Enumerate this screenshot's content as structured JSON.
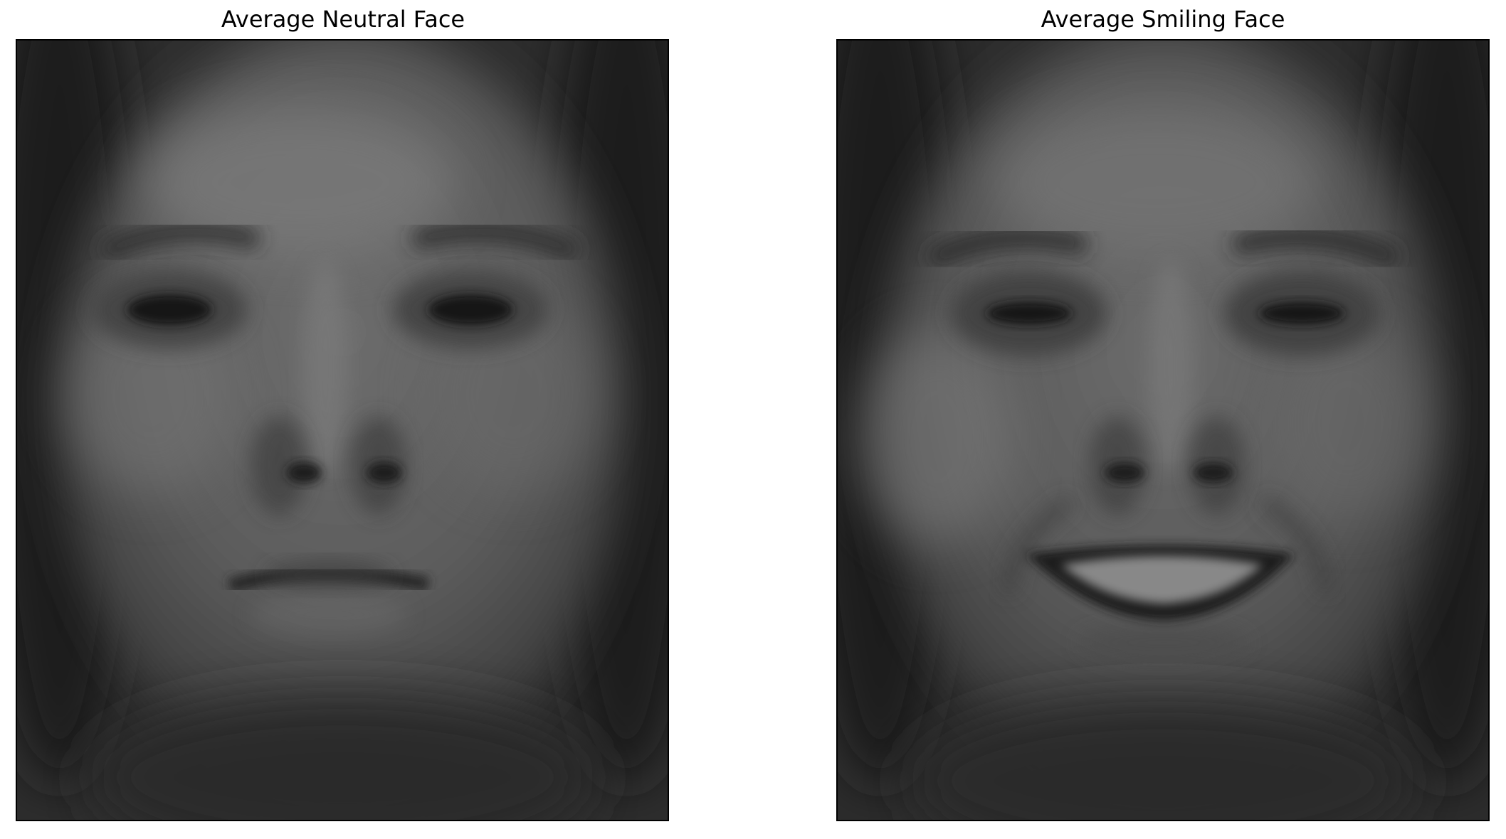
{
  "figure": {
    "panels": [
      {
        "title": "Average Neutral Face",
        "expression": "neutral"
      },
      {
        "title": "Average Smiling Face",
        "expression": "smiling"
      }
    ]
  }
}
